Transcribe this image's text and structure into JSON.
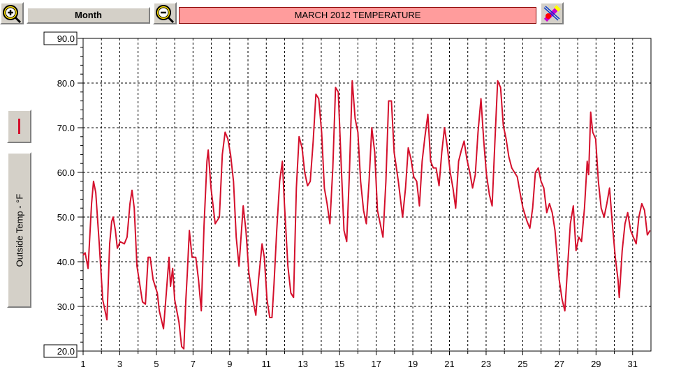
{
  "toolbar": {
    "range_button": "Month"
  },
  "chart_data": {
    "type": "line",
    "title": "MARCH  2012  TEMPERATURE",
    "y_label": "Outside Temp - °F",
    "x": [
      1.0,
      1.11,
      1.27,
      1.46,
      1.57,
      1.69,
      1.88,
      2.07,
      2.3,
      2.45,
      2.56,
      2.64,
      2.76,
      2.87,
      3.02,
      3.25,
      3.4,
      3.56,
      3.67,
      3.79,
      3.94,
      4.24,
      4.4,
      4.55,
      4.66,
      4.82,
      5.05,
      5.16,
      5.39,
      5.54,
      5.69,
      5.77,
      5.89,
      6.0,
      6.23,
      6.38,
      6.5,
      6.61,
      6.69,
      6.8,
      6.95,
      7.15,
      7.3,
      7.45,
      7.6,
      7.76,
      7.83,
      7.98,
      8.21,
      8.44,
      8.6,
      8.75,
      8.9,
      9.05,
      9.21,
      9.36,
      9.51,
      9.74,
      9.89,
      10.05,
      10.27,
      10.43,
      10.58,
      10.77,
      10.89,
      11.04,
      11.19,
      11.31,
      11.42,
      11.57,
      11.73,
      11.88,
      11.99,
      12.18,
      12.34,
      12.49,
      12.64,
      12.79,
      12.95,
      13.1,
      13.25,
      13.4,
      13.56,
      13.71,
      13.86,
      14.02,
      14.17,
      14.32,
      14.47,
      14.63,
      14.78,
      14.93,
      15.08,
      15.24,
      15.39,
      15.54,
      15.69,
      15.85,
      16.0,
      16.15,
      16.31,
      16.46,
      16.61,
      16.76,
      16.92,
      17.07,
      17.22,
      17.37,
      17.53,
      17.68,
      17.83,
      17.98,
      18.21,
      18.44,
      18.6,
      18.75,
      18.9,
      19.05,
      19.21,
      19.36,
      19.51,
      19.66,
      19.82,
      19.97,
      20.12,
      20.27,
      20.43,
      20.58,
      20.73,
      20.89,
      21.04,
      21.19,
      21.34,
      21.5,
      21.65,
      21.8,
      21.95,
      22.11,
      22.26,
      22.41,
      22.56,
      22.72,
      22.87,
      23.02,
      23.18,
      23.33,
      23.48,
      23.63,
      23.79,
      23.94,
      24.09,
      24.24,
      24.4,
      24.55,
      24.7,
      24.85,
      25.01,
      25.24,
      25.39,
      25.54,
      25.69,
      25.85,
      26.0,
      26.15,
      26.31,
      26.46,
      26.61,
      26.76,
      26.99,
      27.15,
      27.3,
      27.45,
      27.6,
      27.76,
      27.91,
      28.06,
      28.21,
      28.37,
      28.52,
      28.6,
      28.71,
      28.82,
      28.98,
      29.13,
      29.28,
      29.44,
      29.59,
      29.74,
      29.89,
      30.05,
      30.2,
      30.27,
      30.43,
      30.58,
      30.73,
      30.89,
      31.04,
      31.19,
      31.34,
      31.5,
      31.65,
      31.8,
      31.95
    ],
    "series": [
      {
        "color": "#d4102c",
        "values": [
          41.5,
          42,
          38.5,
          53,
          58,
          55.5,
          44,
          31.5,
          27,
          44,
          49,
          50,
          47,
          43,
          44.5,
          44,
          45.5,
          53,
          56,
          52,
          39,
          31,
          30.5,
          41,
          41,
          36,
          33,
          29,
          25,
          33,
          41,
          34.5,
          38.5,
          31.5,
          26.5,
          21,
          20.5,
          31.5,
          37.5,
          47,
          41,
          41,
          36,
          29,
          48,
          62.5,
          65,
          56.5,
          48.5,
          50,
          64,
          69,
          67.5,
          64,
          58,
          45.5,
          39,
          52.5,
          47,
          37.5,
          31.5,
          28,
          36,
          44,
          41,
          31.5,
          27.5,
          27.5,
          35,
          47,
          58,
          62.5,
          53,
          39,
          33,
          32,
          56.5,
          68,
          65.5,
          60,
          57,
          58,
          67,
          77.5,
          76.5,
          69,
          56.5,
          53,
          48.5,
          61,
          79,
          78,
          62.5,
          47,
          44.5,
          60,
          80.5,
          72,
          69,
          58,
          51.5,
          48.5,
          58,
          70,
          64.5,
          51.5,
          48.5,
          45.5,
          58,
          76,
          76,
          64.5,
          58,
          50,
          56.5,
          65.5,
          63,
          59,
          58,
          52.5,
          62.5,
          68,
          73,
          62.5,
          61,
          61,
          57,
          64.5,
          70,
          65.5,
          60,
          56.5,
          52,
          62.5,
          65,
          67,
          63,
          60,
          56.5,
          59.5,
          69,
          76.5,
          67,
          59.5,
          55,
          52.5,
          67,
          80.5,
          79,
          70.5,
          67.5,
          63.5,
          61,
          60,
          59,
          55.5,
          52,
          49,
          47.5,
          52,
          60,
          61,
          58,
          56.5,
          51,
          53,
          51,
          47,
          36,
          31.5,
          29,
          39,
          48.5,
          52.5,
          42.5,
          45.5,
          44.5,
          52,
          62.5,
          59.5,
          73.5,
          69,
          67.5,
          58,
          52,
          50,
          53,
          56.5,
          48.5,
          41,
          36,
          32,
          42.5,
          48.5,
          51,
          47,
          45.5,
          44,
          50,
          53,
          51.5,
          46,
          47
        ]
      }
    ],
    "xlim": [
      1,
      32
    ],
    "xticks": [
      1,
      3,
      5,
      7,
      9,
      11,
      13,
      15,
      17,
      19,
      21,
      23,
      25,
      27,
      29,
      31
    ],
    "xminor": [
      2,
      4,
      6,
      8,
      10,
      12,
      14,
      16,
      18,
      20,
      22,
      24,
      26,
      28,
      30
    ],
    "ylim": [
      20,
      90
    ],
    "yticks": [
      {
        "value": 20,
        "label": "20.0"
      },
      {
        "value": 30,
        "label": "30.0"
      },
      {
        "value": 40,
        "label": "40.0"
      },
      {
        "value": 50,
        "label": "50.0"
      },
      {
        "value": 60,
        "label": "60.0"
      },
      {
        "value": 70,
        "label": "70.0"
      },
      {
        "value": 80,
        "label": "80.0"
      },
      {
        "value": 90,
        "label": "90.0"
      }
    ],
    "yminor": [
      22,
      24,
      26,
      28,
      32,
      34,
      36,
      38,
      42,
      44,
      46,
      48,
      52,
      54,
      56,
      58,
      62,
      64,
      66,
      68,
      72,
      74,
      76,
      78,
      82,
      84,
      86,
      88
    ],
    "grid": true
  }
}
